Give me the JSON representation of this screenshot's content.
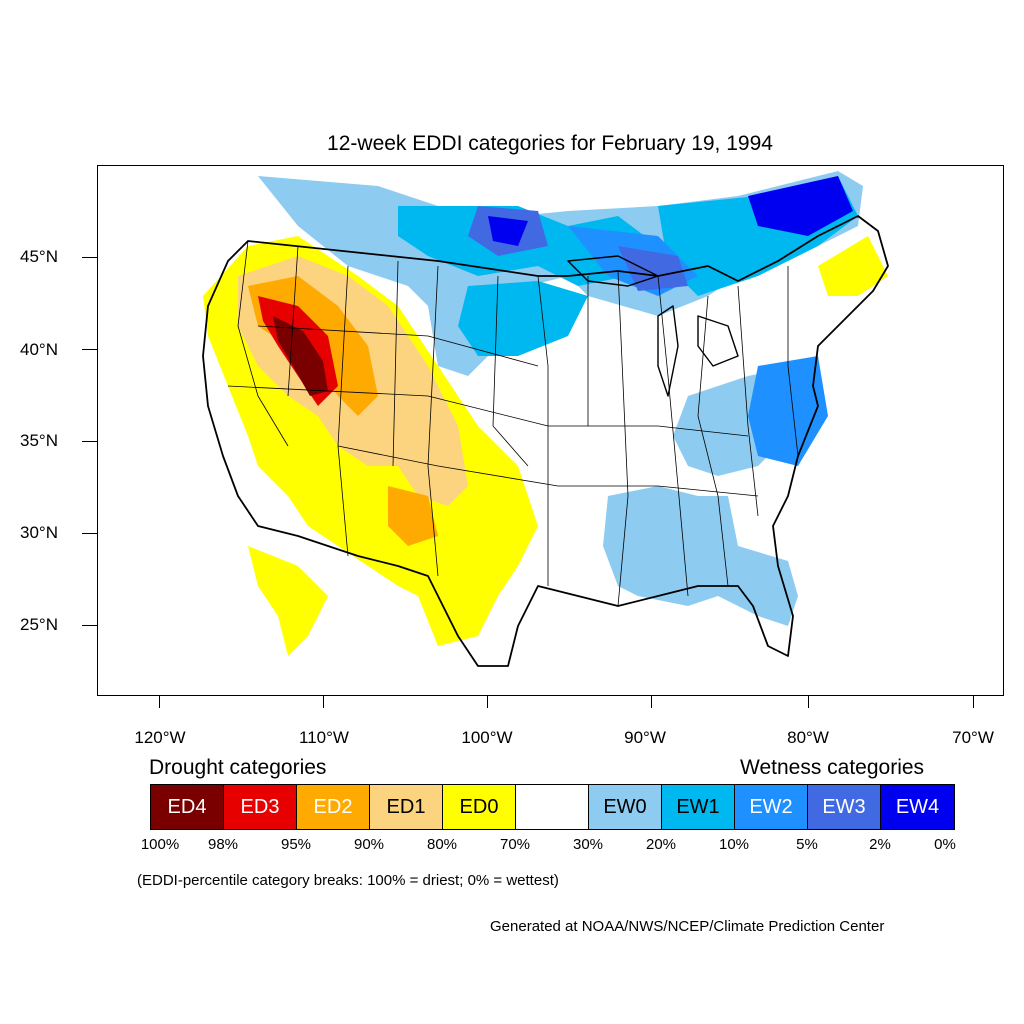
{
  "title": "12-week EDDI categories for February 19, 1994",
  "axes": {
    "lat_labels": [
      "45°N",
      "40°N",
      "35°N",
      "30°N",
      "25°N"
    ],
    "lon_labels": [
      "120°W",
      "110°W",
      "100°W",
      "90°W",
      "80°W",
      "70°W"
    ]
  },
  "legend": {
    "drought_title": "Drought categories",
    "wetness_title": "Wetness categories",
    "categories": [
      {
        "label": "ED4",
        "color": "#7a0000",
        "text_color": "#ffffff"
      },
      {
        "label": "ED3",
        "color": "#e60000",
        "text_color": "#ffffff"
      },
      {
        "label": "ED2",
        "color": "#ffaa00",
        "text_color": "#ffffff"
      },
      {
        "label": "ED1",
        "color": "#fcd37f",
        "text_color": "#000000"
      },
      {
        "label": "ED0",
        "color": "#ffff00",
        "text_color": "#000000"
      },
      {
        "label": "",
        "color": "#ffffff",
        "text_color": "#000000"
      },
      {
        "label": "EW0",
        "color": "#8ecbf0",
        "text_color": "#000000"
      },
      {
        "label": "EW1",
        "color": "#00b8f0",
        "text_color": "#000000"
      },
      {
        "label": "EW2",
        "color": "#1e90ff",
        "text_color": "#ffffff"
      },
      {
        "label": "EW3",
        "color": "#4169e1",
        "text_color": "#ffffff"
      },
      {
        "label": "EW4",
        "color": "#0000f0",
        "text_color": "#ffffff"
      }
    ],
    "percentiles": [
      "100%",
      "98%",
      "95%",
      "90%",
      "80%",
      "70%",
      "30%",
      "20%",
      "10%",
      "5%",
      "2%",
      "0%"
    ]
  },
  "note": "(EDDI-percentile category breaks: 100% = driest; 0% = wettest)",
  "credit": "Generated at NOAA/NWS/NCEP/Climate Prediction Center"
}
